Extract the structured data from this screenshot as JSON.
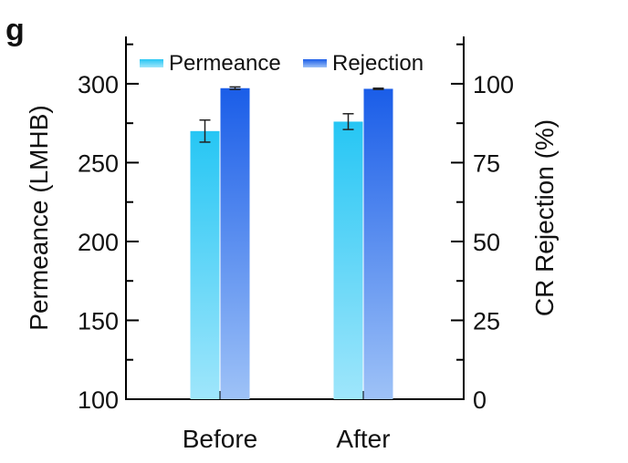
{
  "panel_label": "g",
  "chart_data": {
    "type": "bar",
    "categories": [
      "Before",
      "After"
    ],
    "series": [
      {
        "name": "Permeance",
        "axis": "left",
        "values": [
          270,
          276
        ],
        "errors": [
          7,
          5
        ],
        "color_top": "#26c6f4",
        "color_bottom": "#9fe6fb"
      },
      {
        "name": "Rejection",
        "axis": "right",
        "values": [
          98.6,
          98.4
        ],
        "errors": [
          0.4,
          0.2
        ],
        "color_top": "#1a5de8",
        "color_bottom": "#9ec2f7"
      }
    ],
    "ylabel": "Permeance (LMHB)",
    "ylabel_right": "CR Rejection (%)",
    "ylim": [
      100,
      330
    ],
    "ylim_right": [
      0,
      115
    ],
    "yticks": [
      "100",
      "150",
      "200",
      "250",
      "300"
    ],
    "yticks_right": [
      "0",
      "25",
      "50",
      "75",
      "100"
    ],
    "legend_position": "top",
    "grid": false
  }
}
